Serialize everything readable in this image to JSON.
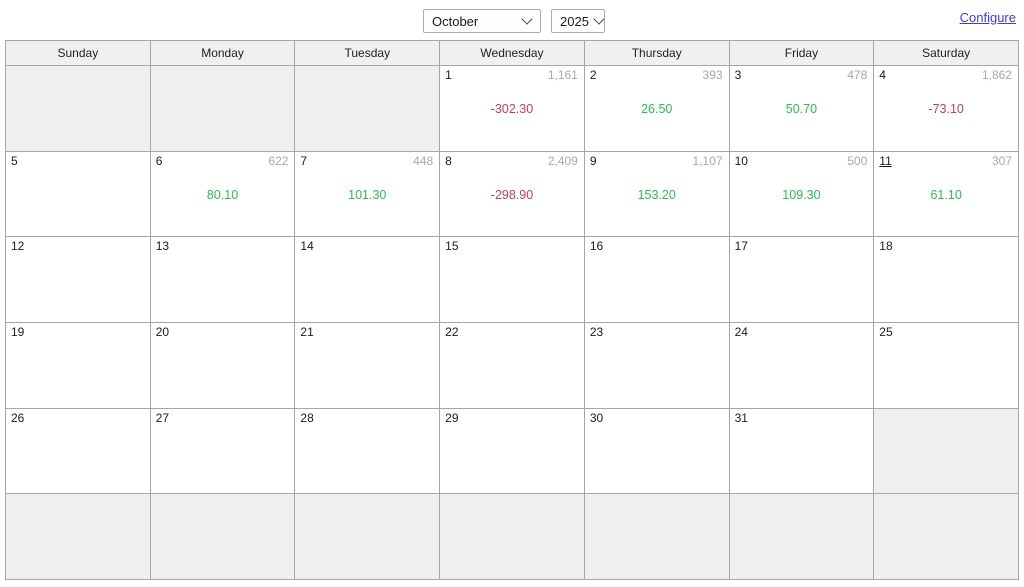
{
  "toolbar": {
    "month": "October",
    "year": "2025",
    "configure_label": "Configure"
  },
  "colors": {
    "positive": "#2abf4a",
    "negative": "#c93d52",
    "link": "#3b3bef",
    "count_text": "#a8a8a8",
    "grid_line": "#a6a6a6",
    "header_bg": "#f0f0f0",
    "out_of_month_bg": "#efefef"
  },
  "calendar": {
    "weekday_headers": [
      "Sunday",
      "Monday",
      "Tuesday",
      "Wednesday",
      "Thursday",
      "Friday",
      "Saturday"
    ],
    "weeks": [
      [
        {
          "type": "out"
        },
        {
          "type": "out"
        },
        {
          "type": "out"
        },
        {
          "type": "day",
          "day": "1",
          "count": "1,161",
          "value": "-302.30",
          "sign": "negative"
        },
        {
          "type": "day",
          "day": "2",
          "count": "393",
          "value": "26.50",
          "sign": "positive"
        },
        {
          "type": "day",
          "day": "3",
          "count": "478",
          "value": "50.70",
          "sign": "positive"
        },
        {
          "type": "day",
          "day": "4",
          "count": "1,862",
          "value": "-73.10",
          "sign": "negative"
        }
      ],
      [
        {
          "type": "day",
          "day": "5"
        },
        {
          "type": "day",
          "day": "6",
          "count": "622",
          "value": "80.10",
          "sign": "positive"
        },
        {
          "type": "day",
          "day": "7",
          "count": "448",
          "value": "101.30",
          "sign": "positive"
        },
        {
          "type": "day",
          "day": "8",
          "count": "2,409",
          "value": "-298.90",
          "sign": "negative"
        },
        {
          "type": "day",
          "day": "9",
          "count": "1,107",
          "value": "153.20",
          "sign": "positive"
        },
        {
          "type": "day",
          "day": "10",
          "count": "500",
          "value": "109.30",
          "sign": "positive"
        },
        {
          "type": "day",
          "day": "11",
          "count": "307",
          "value": "61.10",
          "sign": "positive",
          "today": true
        }
      ],
      [
        {
          "type": "day",
          "day": "12"
        },
        {
          "type": "day",
          "day": "13"
        },
        {
          "type": "day",
          "day": "14"
        },
        {
          "type": "day",
          "day": "15"
        },
        {
          "type": "day",
          "day": "16"
        },
        {
          "type": "day",
          "day": "17"
        },
        {
          "type": "day",
          "day": "18"
        }
      ],
      [
        {
          "type": "day",
          "day": "19"
        },
        {
          "type": "day",
          "day": "20"
        },
        {
          "type": "day",
          "day": "21"
        },
        {
          "type": "day",
          "day": "22"
        },
        {
          "type": "day",
          "day": "23"
        },
        {
          "type": "day",
          "day": "24"
        },
        {
          "type": "day",
          "day": "25"
        }
      ],
      [
        {
          "type": "day",
          "day": "26"
        },
        {
          "type": "day",
          "day": "27"
        },
        {
          "type": "day",
          "day": "28"
        },
        {
          "type": "day",
          "day": "29"
        },
        {
          "type": "day",
          "day": "30"
        },
        {
          "type": "day",
          "day": "31"
        },
        {
          "type": "out"
        }
      ],
      [
        {
          "type": "out"
        },
        {
          "type": "out"
        },
        {
          "type": "out"
        },
        {
          "type": "out"
        },
        {
          "type": "out"
        },
        {
          "type": "out"
        },
        {
          "type": "out"
        }
      ]
    ]
  }
}
